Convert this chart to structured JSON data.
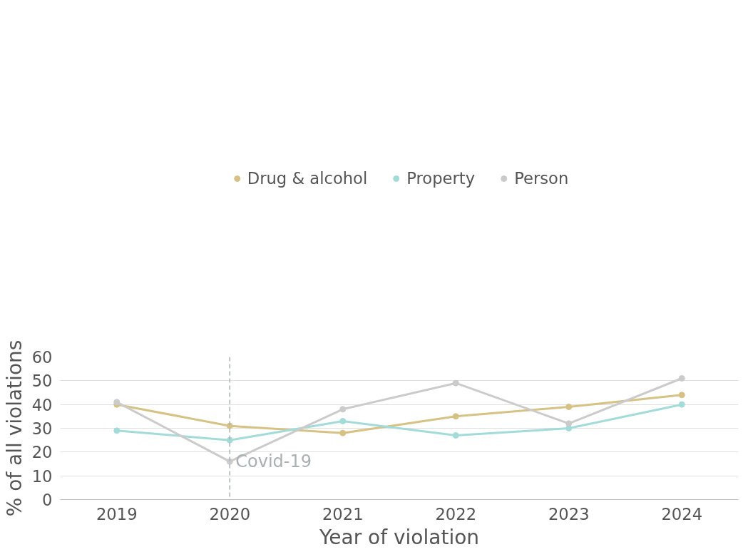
{
  "chart_data": {
    "type": "line",
    "xlabel": "Year of violation",
    "ylabel": "% of all violations",
    "categories": [
      "2019",
      "2020",
      "2021",
      "2022",
      "2023",
      "2024"
    ],
    "series": [
      {
        "name": "Drug & alcohol",
        "color": "#d6c285",
        "values": [
          40,
          31,
          28,
          35,
          39,
          44
        ]
      },
      {
        "name": "Property",
        "color": "#a3dbd8",
        "values": [
          29,
          25,
          33,
          27,
          30,
          40
        ]
      },
      {
        "name": "Person",
        "color": "#cbcbcb",
        "values": [
          41,
          16,
          38,
          49,
          32,
          51
        ]
      }
    ],
    "ylim": [
      0,
      60
    ],
    "yticks": [
      0,
      10,
      20,
      30,
      40,
      50,
      60
    ],
    "grid": "y",
    "legend": "top",
    "marker": "circle",
    "line_style": "solid",
    "ref_lines": [
      {
        "axis": "x",
        "value": "2020",
        "label": "Covid-19",
        "color": "#a9b0b3",
        "line_style": "dashed"
      }
    ]
  }
}
